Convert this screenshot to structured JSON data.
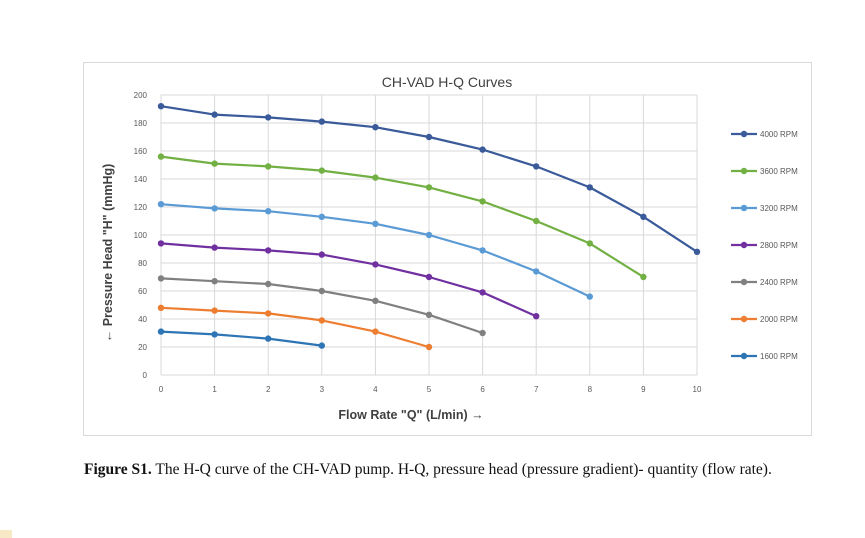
{
  "chart_data": {
    "type": "line",
    "title": "CH-VAD H-Q Curves",
    "xlabel": "Flow Rate \"Q\" (L/min) →",
    "ylabel": "← Pressure Head \"H\" (mmHg)",
    "xlim": [
      0,
      10
    ],
    "ylim": [
      0,
      200
    ],
    "x_ticks": [
      "0",
      "1",
      "2",
      "3",
      "4",
      "5",
      "6",
      "7",
      "8",
      "9",
      "10"
    ],
    "y_ticks": [
      "0",
      "20",
      "40",
      "60",
      "80",
      "100",
      "120",
      "140",
      "160",
      "180",
      "200"
    ],
    "grid": true,
    "legend_position": "right",
    "series": [
      {
        "name": "4000 RPM",
        "color": "#3a5a9a",
        "x": [
          0,
          1,
          2,
          3,
          4,
          5,
          6,
          7,
          8,
          9,
          10
        ],
        "values": [
          192,
          186,
          184,
          181,
          177,
          170,
          161,
          149,
          134,
          113,
          88
        ]
      },
      {
        "name": "3600 RPM",
        "color": "#72b043",
        "x": [
          0,
          1,
          2,
          3,
          4,
          5,
          6,
          7,
          8,
          9
        ],
        "values": [
          156,
          151,
          149,
          146,
          141,
          134,
          124,
          110,
          94,
          70
        ]
      },
      {
        "name": "3200 RPM",
        "color": "#5b9bd5",
        "x": [
          0,
          1,
          2,
          3,
          4,
          5,
          6,
          7,
          8
        ],
        "values": [
          122,
          119,
          117,
          113,
          108,
          100,
          89,
          74,
          56
        ]
      },
      {
        "name": "2800 RPM",
        "color": "#7030a0",
        "x": [
          0,
          1,
          2,
          3,
          4,
          5,
          6,
          7
        ],
        "values": [
          94,
          91,
          89,
          86,
          79,
          70,
          59,
          42
        ]
      },
      {
        "name": "2400 RPM",
        "color": "#808080",
        "x": [
          0,
          1,
          2,
          3,
          4,
          5,
          6
        ],
        "values": [
          69,
          67,
          65,
          60,
          53,
          43,
          30
        ]
      },
      {
        "name": "2000 RPM",
        "color": "#ed7d31",
        "x": [
          0,
          1,
          2,
          3,
          4,
          5
        ],
        "values": [
          48,
          46,
          44,
          39,
          31,
          20
        ]
      },
      {
        "name": "1600 RPM",
        "color": "#2e75b6",
        "x": [
          0,
          1,
          2,
          3
        ],
        "values": [
          31,
          29,
          26,
          21
        ]
      }
    ]
  },
  "caption": {
    "label": "Figure S1.",
    "text": " The H-Q curve of the CH-VAD pump. H-Q, pressure head (pressure gradient)- quantity (flow rate)."
  }
}
